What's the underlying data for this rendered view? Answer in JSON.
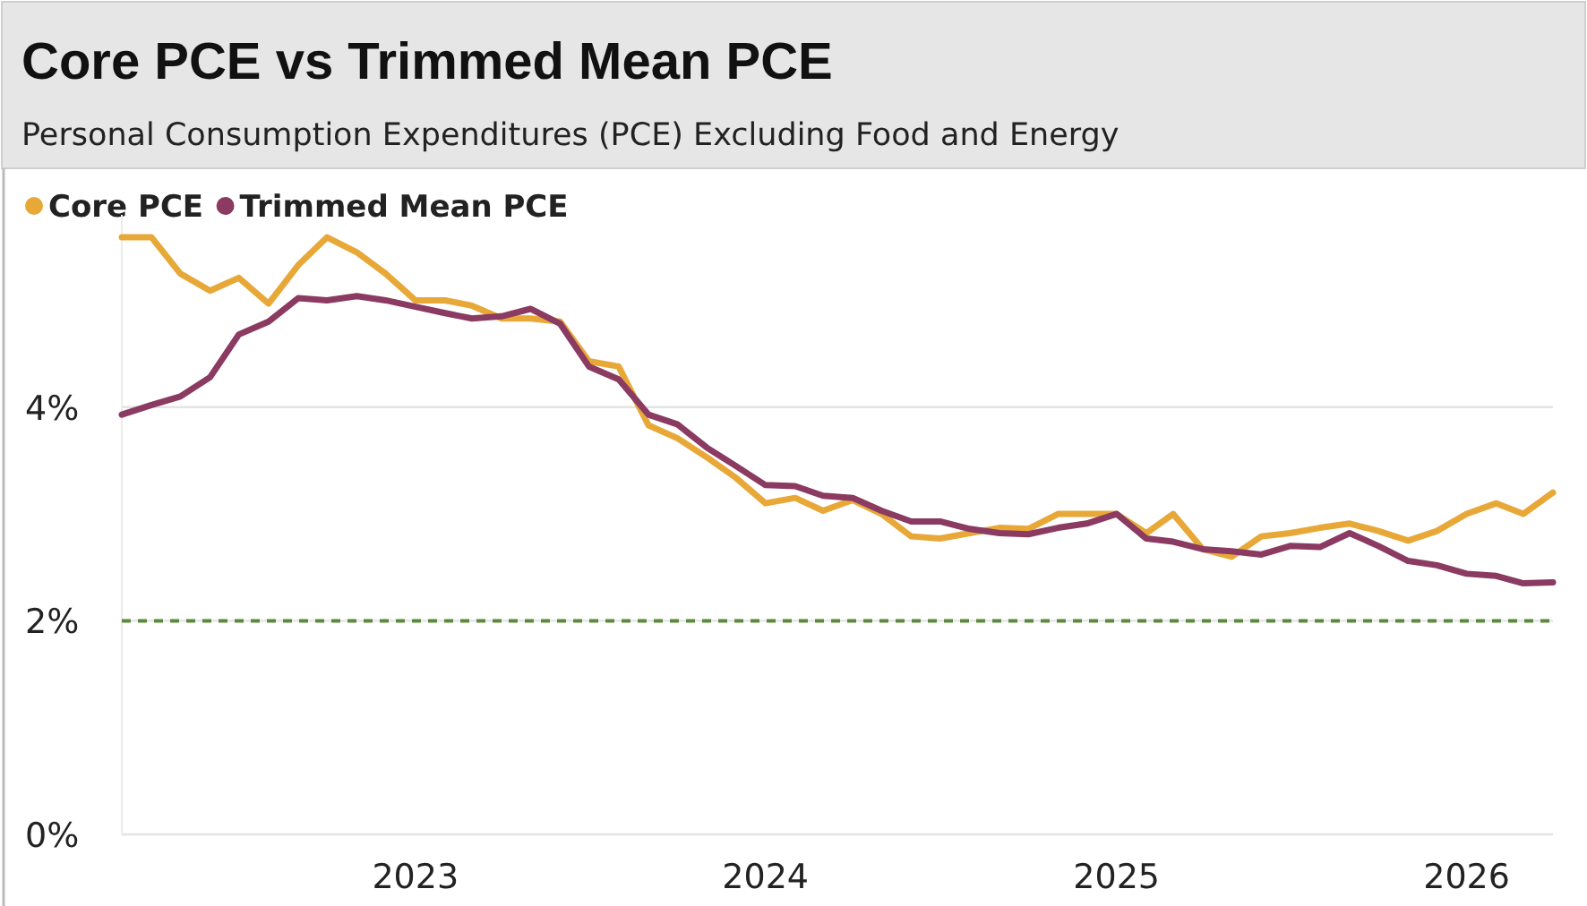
{
  "chart_data": {
    "type": "line",
    "title": "Core PCE vs Trimmed Mean PCE",
    "subtitle": "Personal Consumption Expenditures (PCE) Excluding Food and Energy",
    "x": [
      "2022-03",
      "2022-04",
      "2022-05",
      "2022-06",
      "2022-07",
      "2022-08",
      "2022-09",
      "2022-10",
      "2022-11",
      "2022-12",
      "2023-01",
      "2023-02",
      "2023-03",
      "2023-04",
      "2023-05",
      "2023-06",
      "2023-07",
      "2023-08",
      "2023-09",
      "2023-10",
      "2023-11",
      "2023-12",
      "2024-01",
      "2024-02",
      "2024-03",
      "2024-04",
      "2024-05",
      "2024-06",
      "2024-07",
      "2024-08",
      "2024-09",
      "2024-10",
      "2024-11",
      "2024-12",
      "2025-01",
      "2025-02",
      "2025-03",
      "2025-04",
      "2025-05",
      "2025-06",
      "2025-07",
      "2025-08",
      "2025-09",
      "2025-10",
      "2025-11",
      "2025-12",
      "2026-01",
      "2026-02",
      "2026-03",
      "2026-04"
    ],
    "series": [
      {
        "name": "Core PCE",
        "color": "#e8a838",
        "values": [
          5.59,
          5.59,
          5.25,
          5.09,
          5.21,
          4.97,
          5.33,
          5.59,
          5.45,
          5.25,
          5.0,
          5.0,
          4.95,
          4.83,
          4.83,
          4.8,
          4.43,
          4.38,
          3.83,
          3.71,
          3.53,
          3.34,
          3.1,
          3.15,
          3.03,
          3.13,
          3.0,
          2.79,
          2.77,
          2.82,
          2.87,
          2.86,
          3.0,
          3.0,
          3.0,
          2.82,
          3.0,
          2.67,
          2.6,
          2.79,
          2.82,
          2.87,
          2.91,
          2.84,
          2.75,
          2.84,
          3.0,
          3.1,
          3.0,
          3.2
        ]
      },
      {
        "name": "Trimmed Mean PCE",
        "color": "#8b3a62",
        "values": [
          3.93,
          4.02,
          4.1,
          4.28,
          4.68,
          4.8,
          5.02,
          5.0,
          5.04,
          5.0,
          4.94,
          4.88,
          4.83,
          4.85,
          4.92,
          4.78,
          4.38,
          4.26,
          3.93,
          3.84,
          3.62,
          3.45,
          3.27,
          3.26,
          3.17,
          3.15,
          3.03,
          2.93,
          2.93,
          2.86,
          2.82,
          2.81,
          2.87,
          2.91,
          3.0,
          2.77,
          2.74,
          2.67,
          2.65,
          2.62,
          2.7,
          2.69,
          2.82,
          2.7,
          2.56,
          2.52,
          2.44,
          2.42,
          2.35,
          2.36
        ]
      }
    ],
    "xlim": [
      "2022-03",
      "2026-04"
    ],
    "xticks": [
      {
        "value": "2023-01",
        "label": "2023"
      },
      {
        "value": "2024-01",
        "label": "2024"
      },
      {
        "value": "2025-01",
        "label": "2025"
      },
      {
        "value": "2026-01",
        "label": "2026"
      }
    ],
    "ylim": [
      0,
      5.8
    ],
    "yticks": [
      {
        "value": 0,
        "label": "0%"
      },
      {
        "value": 2,
        "label": "2%"
      },
      {
        "value": 4,
        "label": "4%"
      }
    ],
    "grid": "y",
    "legend": "top left",
    "marker": "none",
    "line_style": "solid",
    "ref_lines": [
      {
        "axis": "y",
        "value": 2,
        "label": null,
        "color": "#5b8a3c",
        "line_style": "dashed"
      }
    ]
  }
}
